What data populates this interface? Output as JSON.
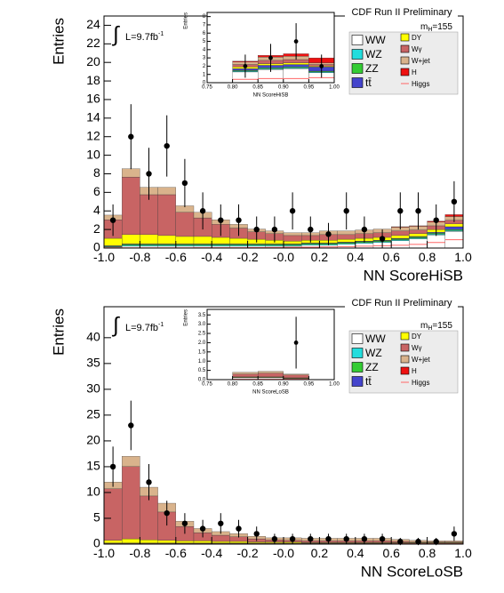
{
  "chart_data": [
    {
      "type": "histogram",
      "header": "CDF Run II Preliminary",
      "mass_label": {
        "symbol": "m",
        "subscript": "H",
        "text": "=155"
      },
      "integral": "∫",
      "luminosity": {
        "text": "L=9.7fb",
        "superscript": "-1"
      },
      "x_label": "NN ScoreHiSB",
      "y_label": "Entries",
      "bins": [
        -1.0,
        -0.9,
        -0.8,
        -0.7,
        -0.6,
        -0.5,
        -0.4,
        -0.3,
        -0.2,
        -0.1,
        0.0,
        0.1,
        0.2,
        0.3,
        0.4,
        0.5,
        0.6,
        0.7,
        0.8,
        0.9,
        1.0
      ],
      "xlim": [
        -1.0,
        1.0
      ],
      "ylim": [
        0,
        25
      ],
      "xticks": [
        {
          "value": -1.0,
          "label": "-1.0"
        },
        {
          "value": -0.8,
          "label": "-0.8"
        },
        {
          "value": -0.6,
          "label": "-0.6"
        },
        {
          "value": -0.4,
          "label": "-0.4"
        },
        {
          "value": -0.2,
          "label": "-0.2"
        },
        {
          "value": 0,
          "label": "-0.0"
        },
        {
          "value": 0.2,
          "label": "0.2"
        },
        {
          "value": 0.4,
          "label": "0.4"
        },
        {
          "value": 0.6,
          "label": "0.6"
        },
        {
          "value": 0.8,
          "label": "0.8"
        },
        {
          "value": 1.0,
          "label": "1.0"
        }
      ],
      "yticks": [
        0,
        2,
        4,
        6,
        8,
        10,
        12,
        14,
        16,
        18,
        20,
        22,
        24
      ],
      "series": [
        {
          "name": "WW",
          "color": "#ffffff",
          "values": [
            0.1,
            0.2,
            0.2,
            0.2,
            0.2,
            0.2,
            0.2,
            0.2,
            0.2,
            0.2,
            0.2,
            0.3,
            0.3,
            0.4,
            0.5,
            0.6,
            0.8,
            1.0,
            1.4,
            1.8
          ]
        },
        {
          "name": "WZ",
          "color": "#22dddd",
          "values": [
            0.05,
            0.1,
            0.1,
            0.1,
            0.1,
            0.1,
            0.1,
            0.1,
            0.1,
            0.1,
            0.1,
            0.1,
            0.1,
            0.1,
            0.1,
            0.1,
            0.1,
            0.1,
            0.1,
            0.1
          ]
        },
        {
          "name": "ZZ",
          "color": "#33cc33",
          "values": [
            0.05,
            0.1,
            0.1,
            0.1,
            0.1,
            0.1,
            0.1,
            0.1,
            0.1,
            0.1,
            0.1,
            0.1,
            0.1,
            0.1,
            0.1,
            0.1,
            0.1,
            0.1,
            0.1,
            0.1
          ]
        },
        {
          "name": "tt̄",
          "color": "#4444cc",
          "values": [
            0.05,
            0.05,
            0.05,
            0.05,
            0.05,
            0.05,
            0.05,
            0.05,
            0.05,
            0.05,
            0.05,
            0.05,
            0.05,
            0.05,
            0.05,
            0.05,
            0.05,
            0.05,
            0.1,
            0.3
          ]
        },
        {
          "name": "DY",
          "color": "#ffff00",
          "values": [
            0.8,
            1.0,
            1.0,
            0.9,
            0.8,
            0.8,
            0.7,
            0.6,
            0.5,
            0.4,
            0.3,
            0.3,
            0.3,
            0.3,
            0.3,
            0.3,
            0.3,
            0.3,
            0.3,
            0.3
          ]
        },
        {
          "name": "Wγ",
          "color": "#c86464",
          "values": [
            2.0,
            6.2,
            4.3,
            4.4,
            2.6,
            2.0,
            1.4,
            1.1,
            0.8,
            0.7,
            0.6,
            0.5,
            0.6,
            0.5,
            0.5,
            0.5,
            0.5,
            0.4,
            0.4,
            0.4
          ]
        },
        {
          "name": "W+jet",
          "color": "#d9b38c",
          "values": [
            0.5,
            0.9,
            0.8,
            0.8,
            0.7,
            0.6,
            0.5,
            0.4,
            0.3,
            0.3,
            0.3,
            0.3,
            0.4,
            0.4,
            0.4,
            0.4,
            0.4,
            0.4,
            0.4,
            0.4
          ]
        },
        {
          "name": "H",
          "color": "#ee1111",
          "values": [
            0,
            0,
            0,
            0,
            0,
            0,
            0,
            0,
            0,
            0,
            0,
            0,
            0,
            0,
            0,
            0,
            0.05,
            0.05,
            0.1,
            0.2
          ]
        },
        {
          "name": "Higgs",
          "color": "#ff6666",
          "line": true,
          "values": [
            0.02,
            0.02,
            0.02,
            0.02,
            0.02,
            0.03,
            0.03,
            0.04,
            0.05,
            0.06,
            0.08,
            0.1,
            0.12,
            0.15,
            0.2,
            0.25,
            0.3,
            0.4,
            0.6,
            0.9
          ]
        }
      ],
      "points": {
        "values": [
          3,
          12,
          8,
          11,
          7,
          4,
          3,
          3,
          2,
          2,
          4,
          2,
          1.5,
          4,
          2,
          1,
          4,
          4,
          3,
          5
        ],
        "errors": [
          1.7,
          3.5,
          2.8,
          3.3,
          2.6,
          2,
          1.7,
          1.7,
          1.4,
          1.4,
          2,
          1.4,
          1.2,
          2,
          1.4,
          1,
          2,
          2,
          1.7,
          2.2
        ]
      }
    },
    {
      "type": "histogram",
      "x_label": "NN ScoreHiSB",
      "y_label": "Entries",
      "bins": [
        0.75,
        0.8,
        0.85,
        0.9,
        0.95,
        1.0
      ],
      "xlim": [
        0.75,
        1.0
      ],
      "ylim": [
        0,
        8.5
      ],
      "xticks": [
        {
          "value": 0.75,
          "label": "0.75"
        },
        {
          "value": 0.8,
          "label": "0.80"
        },
        {
          "value": 0.85,
          "label": "0.85"
        },
        {
          "value": 0.9,
          "label": "0.90"
        },
        {
          "value": 0.95,
          "label": "0.95"
        },
        {
          "value": 1.0,
          "label": "1.00"
        }
      ],
      "yticks": [
        0,
        1,
        2,
        3,
        4,
        5,
        6,
        7,
        8
      ],
      "series": [
        {
          "color": "#ffffff",
          "values": [
            0,
            1.3,
            1.6,
            1.7,
            1.2
          ]
        },
        {
          "color": "#22dddd",
          "values": [
            0,
            0.1,
            0.1,
            0.1,
            0.1
          ]
        },
        {
          "color": "#33cc33",
          "values": [
            0,
            0.1,
            0.1,
            0.1,
            0.1
          ]
        },
        {
          "color": "#4444cc",
          "values": [
            0,
            0.2,
            0.3,
            0.3,
            0.5
          ]
        },
        {
          "color": "#ffff00",
          "values": [
            0,
            0.2,
            0.2,
            0.2,
            0.1
          ]
        },
        {
          "color": "#c86464",
          "values": [
            0,
            0.3,
            0.4,
            0.4,
            0.2
          ]
        },
        {
          "color": "#d9b38c",
          "values": [
            0,
            0.3,
            0.4,
            0.4,
            0.2
          ]
        },
        {
          "color": "#ee1111",
          "values": [
            0,
            0.1,
            0.2,
            0.3,
            0.6
          ]
        },
        {
          "color": "#ff6666",
          "line": true,
          "values": [
            0,
            0.4,
            0.5,
            0.5,
            0.6
          ]
        }
      ],
      "points": {
        "values": [
          null,
          2,
          3,
          5,
          2
        ],
        "errors": [
          null,
          1.4,
          1.7,
          2.2,
          1.4
        ]
      }
    },
    {
      "type": "histogram",
      "header": "CDF Run II Preliminary",
      "mass_label": {
        "symbol": "m",
        "subscript": "H",
        "text": "=155"
      },
      "integral": "∫",
      "luminosity": {
        "text": "L=9.7fb",
        "superscript": "-1"
      },
      "x_label": "NN ScoreLoSB",
      "y_label": "Entries",
      "bins": [
        -1.0,
        -0.9,
        -0.8,
        -0.7,
        -0.6,
        -0.5,
        -0.4,
        -0.3,
        -0.2,
        -0.1,
        0.0,
        0.1,
        0.2,
        0.3,
        0.4,
        0.5,
        0.6,
        0.7,
        0.8,
        0.9,
        1.0
      ],
      "xlim": [
        -1.0,
        1.0
      ],
      "ylim": [
        0,
        46
      ],
      "xticks": [
        {
          "value": -1.0,
          "label": "-1.0"
        },
        {
          "value": -0.8,
          "label": "-0.8"
        },
        {
          "value": -0.6,
          "label": "-0.6"
        },
        {
          "value": -0.4,
          "label": "-0.4"
        },
        {
          "value": -0.2,
          "label": "-0.2"
        },
        {
          "value": 0,
          "label": "-0.0"
        },
        {
          "value": 0.2,
          "label": "0.2"
        },
        {
          "value": 0.4,
          "label": "0.4"
        },
        {
          "value": 0.6,
          "label": "0.6"
        },
        {
          "value": 0.8,
          "label": "0.8"
        },
        {
          "value": 1.0,
          "label": "1.0"
        }
      ],
      "yticks": [
        0,
        5,
        10,
        15,
        20,
        25,
        30,
        35,
        40
      ],
      "series": [
        {
          "name": "WW",
          "color": "#ffffff",
          "values": [
            0.1,
            0.1,
            0.1,
            0.1,
            0.1,
            0.1,
            0.1,
            0.1,
            0.1,
            0.1,
            0.1,
            0.1,
            0.1,
            0.1,
            0.1,
            0.1,
            0.1,
            0.1,
            0.1,
            0.1
          ]
        },
        {
          "name": "WZ",
          "color": "#22dddd",
          "values": [
            0.05,
            0.05,
            0.05,
            0.05,
            0.05,
            0.05,
            0.05,
            0.05,
            0.05,
            0.05,
            0.05,
            0.05,
            0.05,
            0.05,
            0.05,
            0.05,
            0.05,
            0.05,
            0.05,
            0.05
          ]
        },
        {
          "name": "ZZ",
          "color": "#33cc33",
          "values": [
            0.05,
            0.05,
            0.05,
            0.05,
            0.05,
            0.05,
            0.05,
            0.05,
            0.05,
            0.05,
            0.05,
            0.05,
            0.05,
            0.05,
            0.05,
            0.05,
            0.05,
            0.05,
            0.05,
            0.05
          ]
        },
        {
          "name": "tt̄",
          "color": "#4444cc",
          "values": [
            0.02,
            0.02,
            0.02,
            0.02,
            0.02,
            0.02,
            0.02,
            0.02,
            0.02,
            0.02,
            0.02,
            0.02,
            0.02,
            0.02,
            0.02,
            0.02,
            0.02,
            0.02,
            0.02,
            0.02
          ]
        },
        {
          "name": "DY",
          "color": "#ffff00",
          "values": [
            0.5,
            0.8,
            0.6,
            0.5,
            0.4,
            0.4,
            0.3,
            0.3,
            0.2,
            0.2,
            0.2,
            0.1,
            0.1,
            0.1,
            0.1,
            0.1,
            0.1,
            0.1,
            0.1,
            0.1
          ]
        },
        {
          "name": "Wγ",
          "color": "#c86464",
          "values": [
            10,
            14,
            8.5,
            5.5,
            2.8,
            1.6,
            1.2,
            0.9,
            0.6,
            0.4,
            0.3,
            0.3,
            0.3,
            0.3,
            0.3,
            0.3,
            0.2,
            0.1,
            0.1,
            0.1
          ]
        },
        {
          "name": "W+jet",
          "color": "#d9b38c",
          "values": [
            1.3,
            2.0,
            1.7,
            1.7,
            1.0,
            0.8,
            0.7,
            0.6,
            0.5,
            0.4,
            0.5,
            0.5,
            0.5,
            0.5,
            0.5,
            0.5,
            0.4,
            0.3,
            0.2,
            0.2
          ]
        },
        {
          "name": "H",
          "color": "#ee1111",
          "values": [
            0,
            0,
            0,
            0,
            0,
            0,
            0,
            0,
            0,
            0,
            0,
            0,
            0,
            0,
            0,
            0,
            0,
            0,
            0,
            0
          ]
        },
        {
          "name": "Higgs",
          "color": "#ff6666",
          "line": true,
          "values": [
            0.02,
            0.02,
            0.02,
            0.02,
            0.02,
            0.02,
            0.02,
            0.02,
            0.02,
            0.02,
            0.02,
            0.02,
            0.02,
            0.02,
            0.02,
            0.02,
            0.05,
            0.05,
            0.05,
            0.05
          ]
        }
      ],
      "points": {
        "values": [
          15,
          23,
          12,
          6,
          4,
          3,
          4,
          3,
          2,
          1,
          1,
          1,
          1,
          1,
          1,
          1,
          0.5,
          0.5,
          0.5,
          2
        ],
        "errors": [
          3.9,
          4.8,
          3.5,
          2.4,
          2,
          1.7,
          2,
          1.7,
          1.4,
          1,
          1,
          1,
          1,
          1,
          1,
          1,
          0.7,
          0.7,
          0.7,
          1.4
        ]
      }
    },
    {
      "type": "histogram",
      "x_label": "NN ScoreLoSB",
      "y_label": "Entries",
      "bins": [
        0.75,
        0.8,
        0.85,
        0.9,
        0.95,
        1.0
      ],
      "xlim": [
        0.75,
        1.0
      ],
      "ylim": [
        0,
        3.8
      ],
      "xticks": [
        {
          "value": 0.75,
          "label": "0.75"
        },
        {
          "value": 0.8,
          "label": "0.80"
        },
        {
          "value": 0.85,
          "label": "0.85"
        },
        {
          "value": 0.9,
          "label": "0.90"
        },
        {
          "value": 0.95,
          "label": "0.95"
        },
        {
          "value": 1.0,
          "label": "1.00"
        }
      ],
      "yticks": [
        {
          "value": 0,
          "label": "0.0"
        },
        0.5,
        {
          "value": 1,
          "label": "1.0"
        },
        1.5,
        {
          "value": 2,
          "label": "2.0"
        },
        2.5,
        {
          "value": 3,
          "label": "3.0"
        },
        3.5
      ],
      "series": [
        {
          "color": "#ffffff",
          "values": [
            0,
            0.1,
            0.1,
            0.05,
            0
          ]
        },
        {
          "color": "#22dddd",
          "values": [
            0,
            0.01,
            0.01,
            0.01,
            0
          ]
        },
        {
          "color": "#33cc33",
          "values": [
            0,
            0.01,
            0.01,
            0.01,
            0
          ]
        },
        {
          "color": "#4444cc",
          "values": [
            0,
            0.01,
            0.01,
            0.01,
            0
          ]
        },
        {
          "color": "#ffff00",
          "values": [
            0,
            0.02,
            0.02,
            0.02,
            0
          ]
        },
        {
          "color": "#c86464",
          "values": [
            0,
            0.15,
            0.2,
            0.15,
            0
          ]
        },
        {
          "color": "#d9b38c",
          "values": [
            0,
            0.1,
            0.1,
            0.05,
            0
          ]
        },
        {
          "color": "#ee1111",
          "values": [
            0,
            0,
            0,
            0,
            0
          ]
        },
        {
          "color": "#ff6666",
          "line": true,
          "values": [
            0,
            0.02,
            0.02,
            0.02,
            0
          ]
        }
      ],
      "points": {
        "values": [
          null,
          null,
          null,
          2,
          null
        ],
        "errors": [
          null,
          null,
          null,
          1.4,
          null
        ]
      }
    }
  ]
}
